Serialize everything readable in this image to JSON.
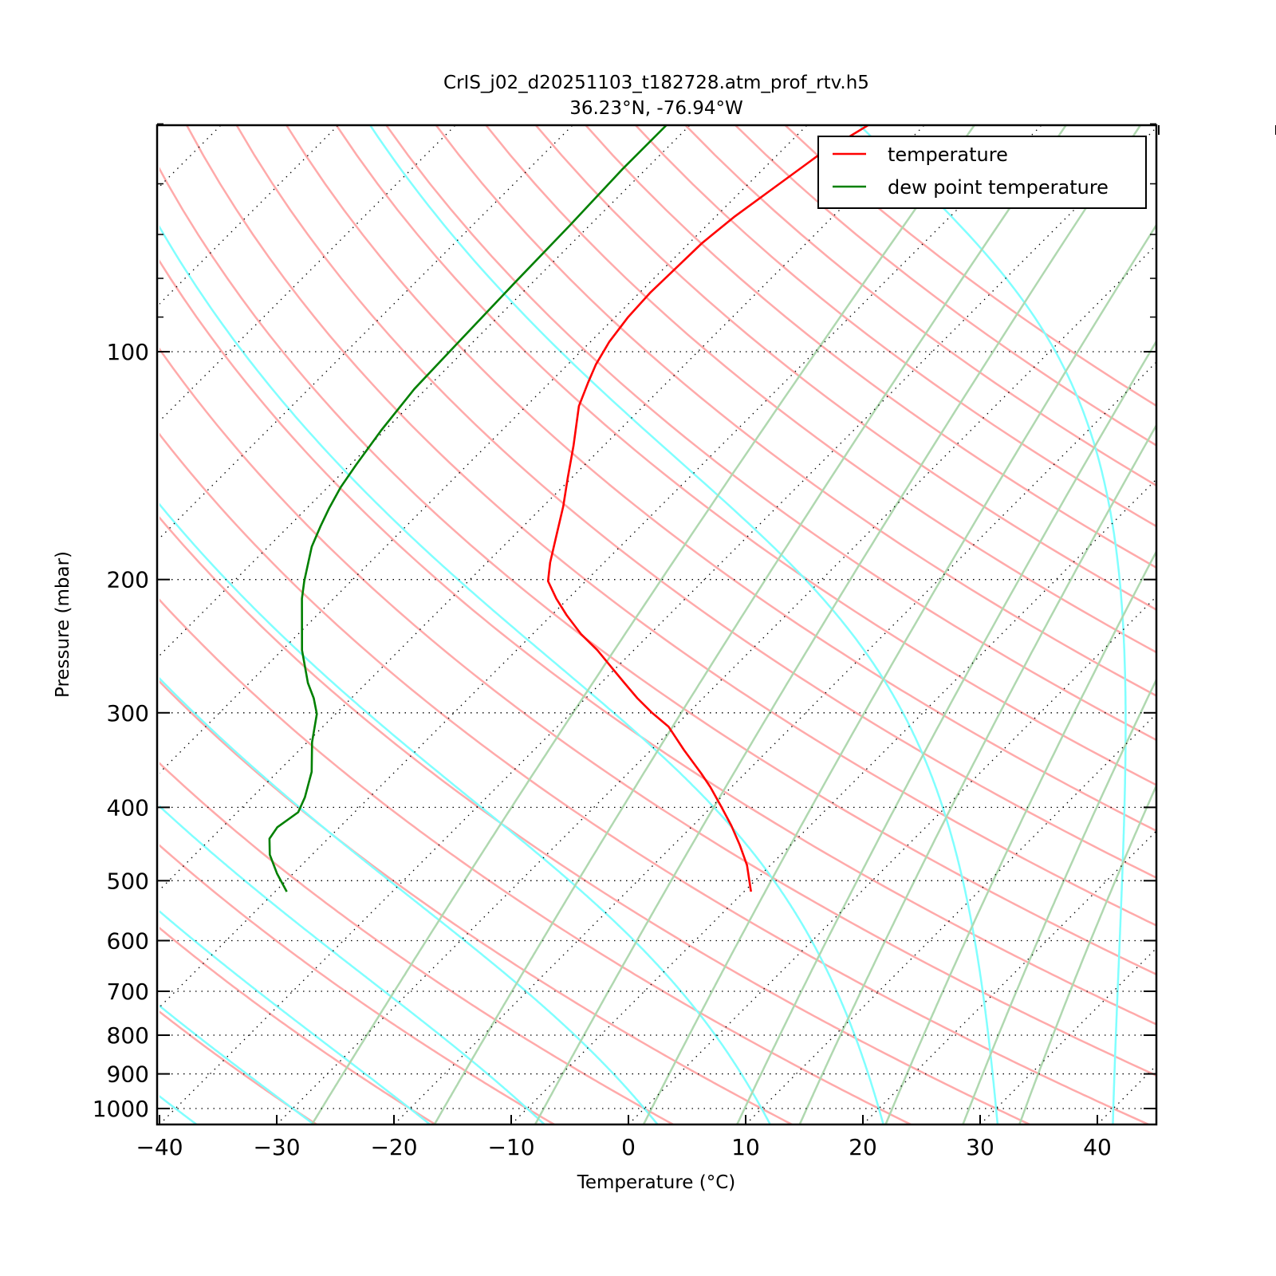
{
  "chart_data": {
    "type": "line",
    "subtype": "skew-T log-P diagram",
    "title": "CrIS_j02_d20251103_t182728.atm_prof_rtv.h5",
    "subtitle": "36.23°N, -76.94°W",
    "xlabel": "Temperature (°C)",
    "ylabel": "Pressure (mbar)",
    "xlim": [
      -40,
      45
    ],
    "ylim": [
      1050,
      50
    ],
    "yscale": "log",
    "x_ticks": [
      -40,
      -30,
      -20,
      -10,
      0,
      10,
      20,
      30,
      40
    ],
    "x_tick_labels": [
      "−40",
      "−30",
      "−20",
      "−10",
      "0",
      "10",
      "20",
      "30",
      "40"
    ],
    "y_ticks": [
      100,
      200,
      300,
      400,
      500,
      600,
      700,
      800,
      900,
      1000
    ],
    "y_tick_labels": [
      "100",
      "200",
      "300",
      "400",
      "500",
      "600",
      "700",
      "800",
      "900",
      "1000"
    ],
    "y_minor_ticks": [
      50,
      60,
      70,
      80,
      90
    ],
    "grid": true,
    "legend_position": "top-right",
    "series": [
      {
        "name": "temperature",
        "color": "#ff0000",
        "pressure": [
          517,
          477,
          449,
          423,
          400,
          376,
          361,
          336,
          313,
          300,
          287,
          274,
          263,
          248,
          236,
          223,
          212,
          201,
          190,
          174,
          160,
          147,
          133,
          118,
          110,
          104,
          97,
          90,
          83.6,
          77.5,
          71.9,
          66.4,
          61.4,
          55.2,
          50.2
        ],
        "temperature": [
          -9.4,
          -12.0,
          -14.3,
          -16.7,
          -19.1,
          -21.8,
          -23.7,
          -27.2,
          -30.5,
          -33.1,
          -35.6,
          -38.0,
          -40.1,
          -43.1,
          -45.9,
          -48.7,
          -51.0,
          -53.2,
          -54.6,
          -56.5,
          -58.3,
          -60.3,
          -62.6,
          -65.5,
          -66.7,
          -67.6,
          -68.4,
          -68.9,
          -69.1,
          -69.0,
          -68.9,
          -68.4,
          -67.6,
          -66.5,
          -64.8
        ]
      },
      {
        "name": "dew point temperature",
        "color": "#008000",
        "pressure": [
          517,
          489,
          462,
          440,
          425,
          406,
          388,
          359,
          328,
          301,
          287,
          274,
          248,
          212,
          201,
          181,
          170,
          161,
          151,
          141,
          127,
          112,
          99,
          81.2,
          68.0,
          57.4,
          50.2
        ],
        "temperature": [
          -49.0,
          -51.4,
          -53.6,
          -55.0,
          -55.3,
          -54.8,
          -55.5,
          -57.1,
          -59.6,
          -61.6,
          -63.2,
          -65.0,
          -68.3,
          -72.7,
          -74.0,
          -76.3,
          -77.3,
          -78.1,
          -78.9,
          -79.5,
          -80.3,
          -81.0,
          -81.2,
          -81.5,
          -81.7,
          -82.0,
          -82.0
        ]
      }
    ],
    "background_lines": {
      "isotherm_step_c": 10,
      "dry_adiabats_c_at_1000": {
        "start": -30,
        "stop": 200,
        "step": 10,
        "color": "#ffaaaa"
      },
      "moist_adiabats_c_at_1000": {
        "start": -40,
        "stop": 50,
        "step": 10,
        "color": "#80ffff"
      },
      "mixing_ratio_lines_kgkg": {
        "values": [
          0.0004,
          0.001,
          0.002,
          0.004,
          0.007,
          0.01,
          0.016,
          0.024,
          0.032
        ],
        "color": "#b0d8b0"
      }
    }
  }
}
